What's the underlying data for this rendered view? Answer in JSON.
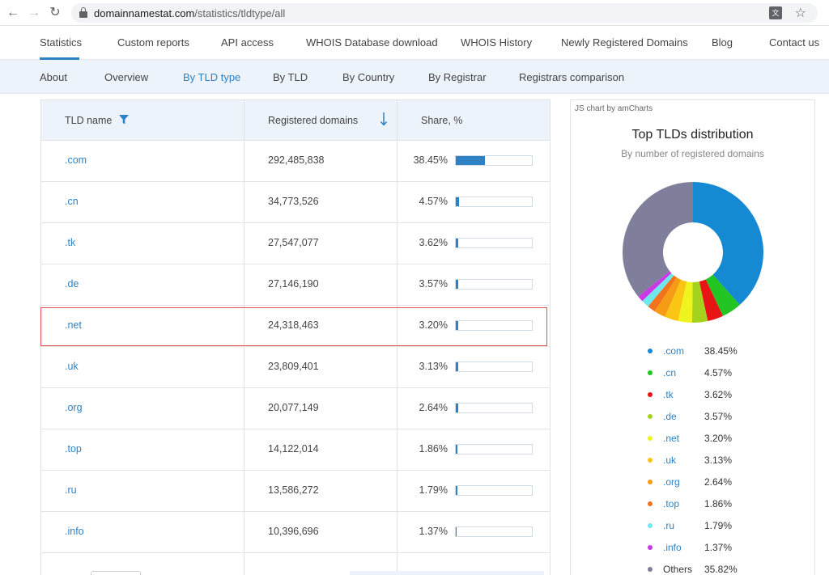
{
  "browser": {
    "url_host": "domainnamestat.com",
    "url_path": "/statistics/tldtype/all"
  },
  "main_nav": [
    {
      "label": "Statistics",
      "active": true
    },
    {
      "label": "Custom reports"
    },
    {
      "label": "API access"
    },
    {
      "label": "WHOIS Database download"
    },
    {
      "label": "WHOIS History"
    },
    {
      "label": "Newly Registered Domains"
    },
    {
      "label": "Blog"
    },
    {
      "label": "Contact us"
    }
  ],
  "sub_nav": [
    {
      "label": "About"
    },
    {
      "label": "Overview"
    },
    {
      "label": "By TLD type",
      "active": true
    },
    {
      "label": "By TLD"
    },
    {
      "label": "By Country"
    },
    {
      "label": "By Registrar"
    },
    {
      "label": "Registrars comparison"
    }
  ],
  "table": {
    "headers": {
      "tld": "TLD name",
      "registered": "Registered domains",
      "share": "Share, %"
    },
    "rows": [
      {
        "tld": ".com",
        "registered": "292,485,838",
        "share": "38.45%",
        "share_value": 38.45
      },
      {
        "tld": ".cn",
        "registered": "34,773,526",
        "share": "4.57%",
        "share_value": 4.57
      },
      {
        "tld": ".tk",
        "registered": "27,547,077",
        "share": "3.62%",
        "share_value": 3.62
      },
      {
        "tld": ".de",
        "registered": "27,146,190",
        "share": "3.57%",
        "share_value": 3.57
      },
      {
        "tld": ".net",
        "registered": "24,318,463",
        "share": "3.20%",
        "share_value": 3.2,
        "highlighted": true
      },
      {
        "tld": ".uk",
        "registered": "23,809,401",
        "share": "3.13%",
        "share_value": 3.13
      },
      {
        "tld": ".org",
        "registered": "20,077,149",
        "share": "2.64%",
        "share_value": 2.64
      },
      {
        "tld": ".top",
        "registered": "14,122,014",
        "share": "1.86%",
        "share_value": 1.86
      },
      {
        "tld": ".ru",
        "registered": "13,586,272",
        "share": "1.79%",
        "share_value": 1.79
      },
      {
        "tld": ".info",
        "registered": "10,396,696",
        "share": "1.37%",
        "share_value": 1.37
      }
    ]
  },
  "chart": {
    "credit": "JS chart by amCharts",
    "title": "Top TLDs distribution",
    "subtitle": "By number of registered domains"
  },
  "chart_data": {
    "type": "pie",
    "title": "Top TLDs distribution",
    "subtitle": "By number of registered domains",
    "categories": [
      ".com",
      ".cn",
      ".tk",
      ".de",
      ".net",
      ".uk",
      ".org",
      ".top",
      ".ru",
      ".info",
      "Others"
    ],
    "values": [
      38.45,
      4.57,
      3.62,
      3.57,
      3.2,
      3.13,
      2.64,
      1.86,
      1.79,
      1.37,
      35.82
    ],
    "labels": [
      "38.45%",
      "4.57%",
      "3.62%",
      "3.57%",
      "3.20%",
      "3.13%",
      "2.64%",
      "1.86%",
      "1.79%",
      "1.37%",
      "35.82%"
    ],
    "colors": [
      "#1689d3",
      "#22c521",
      "#e81515",
      "#a5d21c",
      "#f0f41e",
      "#fbc514",
      "#f69c14",
      "#f1731b",
      "#6ee7ef",
      "#cc38e3",
      "#7f7f9c"
    ],
    "legend": "bottom"
  }
}
